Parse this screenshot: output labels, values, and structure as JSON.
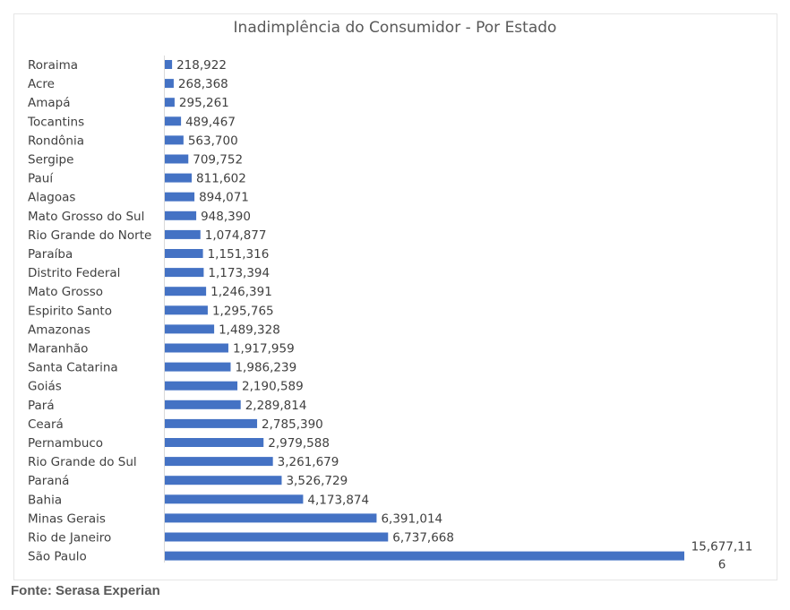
{
  "chart_data": {
    "type": "bar",
    "orientation": "horizontal",
    "title": "Inadimplência do Consumidor - Por Estado",
    "xlabel": "",
    "ylabel": "",
    "categories": [
      "Roraima",
      "Acre",
      "Amapá",
      "Tocantins",
      "Rondônia",
      "Sergipe",
      "Pauí",
      "Alagoas",
      "Mato Grosso do Sul",
      "Rio Grande do Norte",
      "Paraíba",
      "Distrito Federal",
      "Mato Grosso",
      "Espirito Santo",
      "Amazonas",
      "Maranhão",
      "Santa Catarina",
      "Goiás",
      "Pará",
      "Ceará",
      "Pernambuco",
      "Rio Grande do Sul",
      "Paraná",
      "Bahia",
      "Minas Gerais",
      "Rio de Janeiro",
      "São Paulo"
    ],
    "values": [
      218922,
      268368,
      295261,
      489467,
      563700,
      709752,
      811602,
      894071,
      948390,
      1074877,
      1151316,
      1173394,
      1246391,
      1295765,
      1489328,
      1917959,
      1986239,
      2190589,
      2289814,
      2785390,
      2979588,
      3261679,
      3526729,
      4173874,
      6391014,
      6737668,
      15677116
    ],
    "value_labels": [
      "218,922",
      "268,368",
      "295,261",
      "489,467",
      "563,700",
      "709,752",
      "811,602",
      "894,071",
      "948,390",
      "1,074,877",
      "1,151,316",
      "1,173,394",
      "1,246,391",
      "1,295,765",
      "1,489,328",
      "1,917,959",
      "1,986,239",
      "2,190,589",
      "2,289,814",
      "2,785,390",
      "2,979,588",
      "3,261,679",
      "3,526,729",
      "4,173,874",
      "6,391,014",
      "6,737,668",
      "15,677,11 6"
    ],
    "bar_color": "#4472C4",
    "grid": false,
    "legend": "none"
  },
  "source_note": "Fonte: Serasa Experian"
}
